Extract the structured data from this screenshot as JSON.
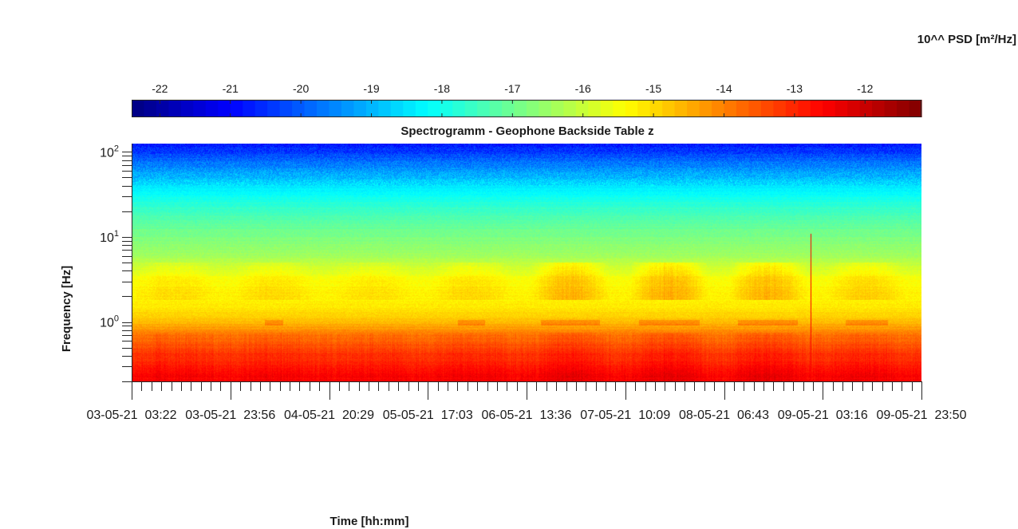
{
  "chart_data": {
    "type": "heatmap",
    "title": "Spectrogramm - Geophone Backside Table z",
    "xlabel": "Time [hh:mm]",
    "ylabel": "Frequency [Hz]",
    "colorbar": {
      "label": "10^^ PSD [m²/Hz]",
      "ticks": [
        "-22",
        "-21",
        "-20",
        "-19",
        "-18",
        "-17",
        "-16",
        "-15",
        "-14",
        "-13",
        "-12"
      ],
      "range": [
        -22.4,
        -11.2
      ],
      "colormap": "jet",
      "placement": "top"
    },
    "x_tick_labels": [
      "03-05-21  03:22",
      "03-05-21  23:56",
      "04-05-21  20:29",
      "05-05-21  17:03",
      "06-05-21  13:36",
      "07-05-21  10:09",
      "08-05-21  06:43",
      "09-05-21  03:16",
      "09-05-21  23:50"
    ],
    "y_scale": "log",
    "y_tick_labels": [
      {
        "base": "10",
        "exp": "0"
      },
      {
        "base": "10",
        "exp": "1"
      },
      {
        "base": "10",
        "exp": "2"
      }
    ],
    "ylim_hz": [
      0.2,
      125
    ],
    "psd_profile": [
      {
        "freq_hz": 0.22,
        "log_psd": -12.6
      },
      {
        "freq_hz": 0.3,
        "log_psd": -12.9
      },
      {
        "freq_hz": 0.45,
        "log_psd": -13.3
      },
      {
        "freq_hz": 0.7,
        "log_psd": -13.9
      },
      {
        "freq_hz": 1.0,
        "log_psd": -14.7
      },
      {
        "freq_hz": 1.5,
        "log_psd": -15.2
      },
      {
        "freq_hz": 3.0,
        "log_psd": -15.4
      },
      {
        "freq_hz": 6.0,
        "log_psd": -16.4
      },
      {
        "freq_hz": 12.0,
        "log_psd": -17.0
      },
      {
        "freq_hz": 22.0,
        "log_psd": -17.6
      },
      {
        "freq_hz": 40.0,
        "log_psd": -18.5
      },
      {
        "freq_hz": 70.0,
        "log_psd": -19.6
      },
      {
        "freq_hz": 125.0,
        "log_psd": -20.8
      }
    ],
    "grid": false
  }
}
